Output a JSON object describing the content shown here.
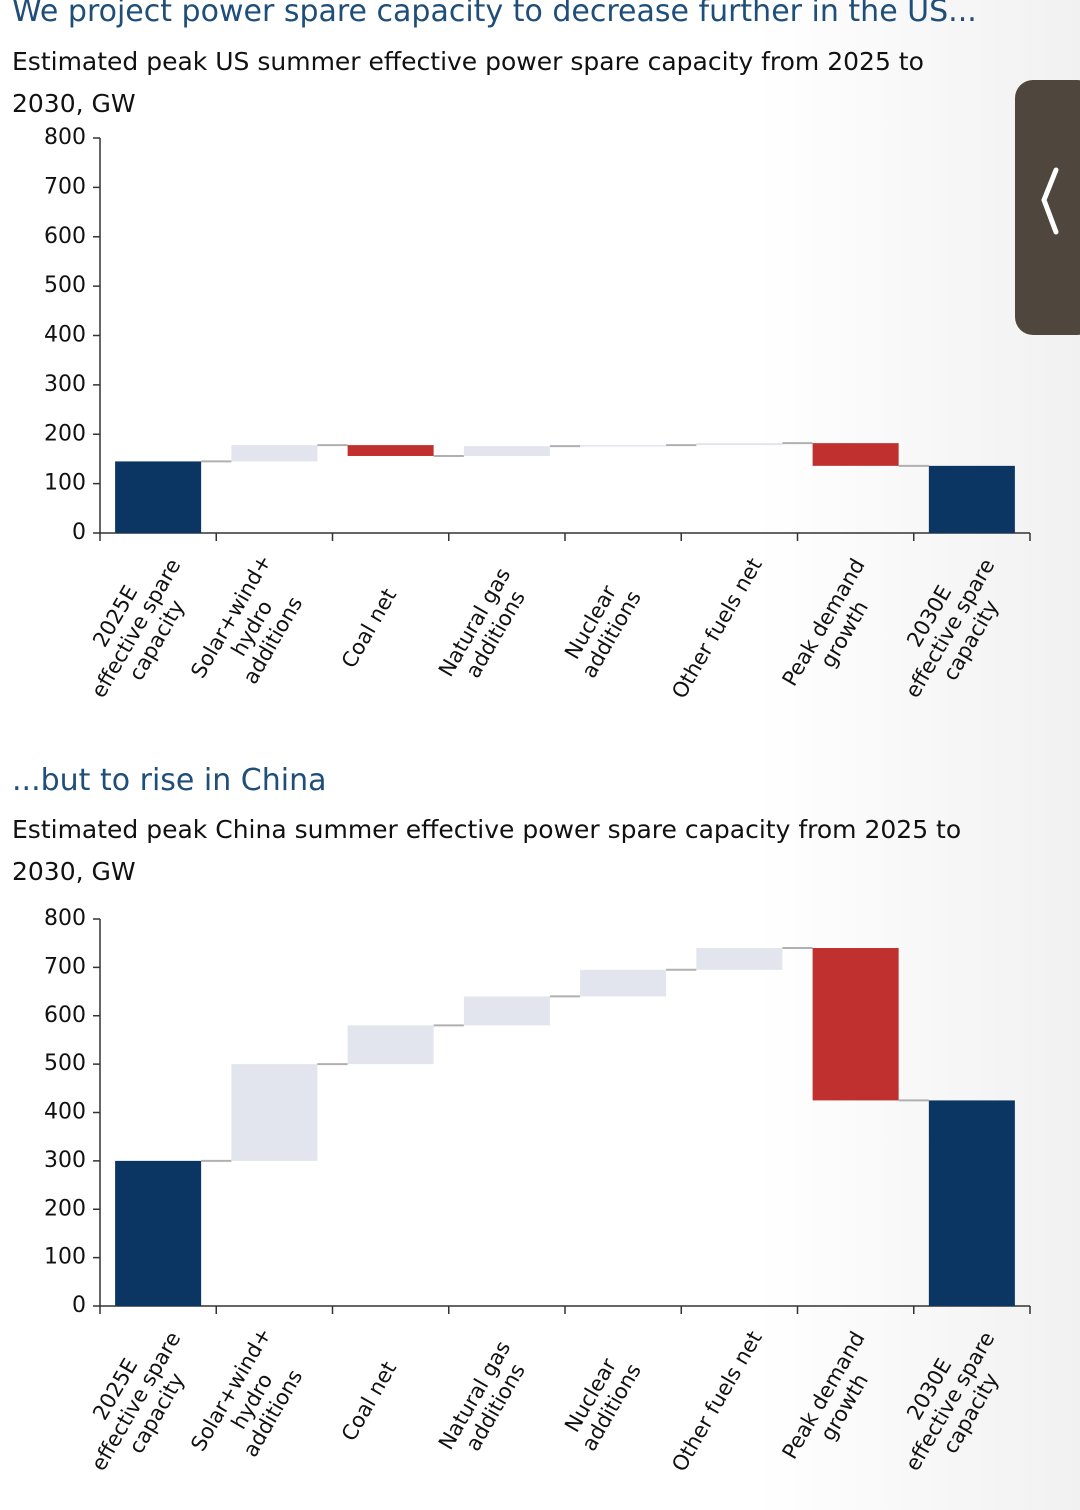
{
  "chart_data": [
    {
      "type": "waterfall",
      "title": "We project power spare capacity to decrease further in the US...",
      "subtitle": "Estimated peak US summer effective power spare capacity from 2025 to 2030, GW",
      "categories": [
        "2025E effective spare capacity",
        "Solar+wind+ hydro additions",
        "Coal net",
        "Natural gas additions",
        "Nuclear additions",
        "Other fuels net",
        "Peak demand growth",
        "2030E effective spare capacity"
      ],
      "measure": [
        "total",
        "relative",
        "relative",
        "relative",
        "relative",
        "relative",
        "relative",
        "total"
      ],
      "values": [
        145,
        33,
        -22,
        20,
        2,
        4,
        -46,
        136
      ],
      "colors": {
        "total": "#0b3563",
        "increase": "#e2e5ee",
        "decrease": "#c0302f"
      },
      "ylim": [
        0,
        800
      ],
      "yticks": [
        0,
        100,
        200,
        300,
        400,
        500,
        600,
        700,
        800
      ]
    },
    {
      "type": "waterfall",
      "title": "...but to rise in China",
      "subtitle": "Estimated peak China summer effective power spare capacity from 2025 to 2030, GW",
      "categories": [
        "2025E effective spare capacity",
        "Solar+wind+ hydro additions",
        "Coal net",
        "Natural gas additions",
        "Nuclear additions",
        "Other fuels net",
        "Peak demand growth",
        "2030E effective spare capacity"
      ],
      "measure": [
        "total",
        "relative",
        "relative",
        "relative",
        "relative",
        "relative",
        "relative",
        "total"
      ],
      "values": [
        300,
        200,
        80,
        60,
        55,
        45,
        -315,
        425
      ],
      "colors": {
        "total": "#0b3563",
        "increase": "#e2e5ee",
        "decrease": "#c0302f"
      },
      "ylim": [
        0,
        800
      ],
      "yticks": [
        0,
        100,
        200,
        300,
        400,
        500,
        600,
        700,
        800
      ]
    }
  ]
}
